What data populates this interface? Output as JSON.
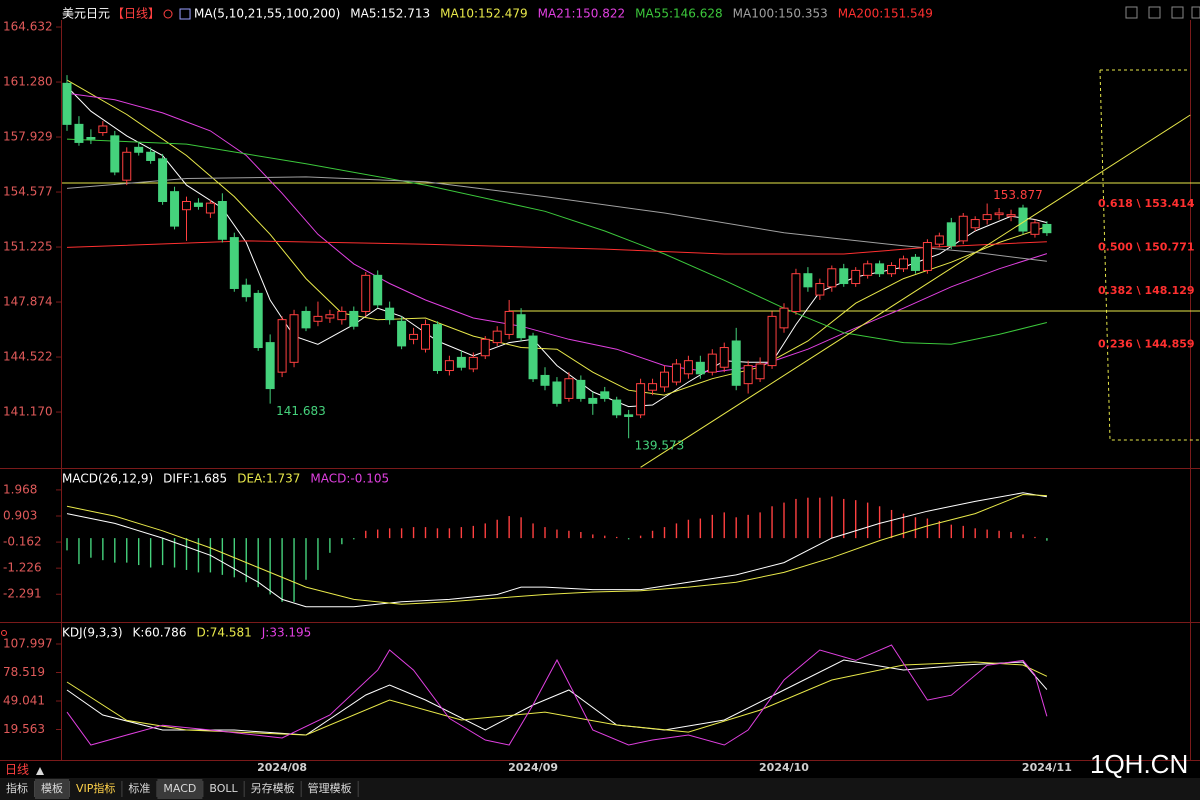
{
  "header": {
    "symbol": "美元日元",
    "period": "【日线】"
  },
  "chart_data": [
    {
      "type": "candlestick",
      "title": "MA(5,10,21,55,100,200)",
      "categories": [
        null,
        null,
        null,
        null,
        null,
        null,
        null,
        null,
        null,
        null,
        null,
        null,
        null,
        null,
        null,
        null,
        null,
        null,
        "2024/08",
        null,
        null,
        null,
        null,
        null,
        null,
        null,
        null,
        null,
        null,
        null,
        null,
        null,
        null,
        null,
        null,
        null,
        null,
        null,
        null,
        "2024/09",
        null,
        null,
        null,
        null,
        null,
        null,
        null,
        null,
        null,
        null,
        null,
        null,
        null,
        null,
        null,
        null,
        null,
        null,
        null,
        null,
        "2024/10",
        null,
        null,
        null,
        null,
        null,
        null,
        null,
        null,
        null,
        null,
        null,
        null,
        null,
        null,
        null,
        null,
        null,
        null,
        null,
        null,
        null,
        "2024/11"
      ],
      "open": [
        161.2,
        158.7,
        157.9,
        158.2,
        158.0,
        155.3,
        157.3,
        157.0,
        156.6,
        154.6,
        153.5,
        153.9,
        153.3,
        154.0,
        151.8,
        148.9,
        148.4,
        145.4,
        143.6,
        144.2,
        147.3,
        146.7,
        146.9,
        146.8,
        147.3,
        147.3,
        149.5,
        147.5,
        146.7,
        145.6,
        145.0,
        146.5,
        143.7,
        144.5,
        143.8,
        144.6,
        145.4,
        145.9,
        147.1,
        145.8,
        143.4,
        143.0,
        142.0,
        143.1,
        142.0,
        142.4,
        141.9,
        141.0,
        141.0,
        142.5,
        142.7,
        143.0,
        143.5,
        144.2,
        143.6,
        143.9,
        145.5,
        142.9,
        143.2,
        144.0,
        146.3,
        147.3,
        149.6,
        148.3,
        148.8,
        149.9,
        149.0,
        149.5,
        150.2,
        149.6,
        149.9,
        150.6,
        149.8,
        151.4,
        152.7,
        151.6,
        152.4,
        152.9,
        153.2,
        153.1,
        153.6,
        152.0,
        152.6
      ],
      "high": [
        161.7,
        159.2,
        158.4,
        158.9,
        158.3,
        157.3,
        157.6,
        157.3,
        156.9,
        154.9,
        154.3,
        154.2,
        154.1,
        154.5,
        152.1,
        149.3,
        148.6,
        145.9,
        147.0,
        147.4,
        147.6,
        147.9,
        147.4,
        147.6,
        147.6,
        149.7,
        149.8,
        147.9,
        147.0,
        146.3,
        146.8,
        146.7,
        144.6,
        144.9,
        144.8,
        145.8,
        146.4,
        148.0,
        147.5,
        146.0,
        143.9,
        143.3,
        143.6,
        143.4,
        142.4,
        142.7,
        142.1,
        141.3,
        143.2,
        143.2,
        144.0,
        144.4,
        144.6,
        144.6,
        145.0,
        145.4,
        146.3,
        144.3,
        144.5,
        147.3,
        147.8,
        149.9,
        150.0,
        149.3,
        150.1,
        150.2,
        150.0,
        150.4,
        150.4,
        150.3,
        150.7,
        150.8,
        151.7,
        152.1,
        153.0,
        153.3,
        153.1,
        153.877,
        153.6,
        153.5,
        153.8,
        152.9,
        152.8
      ],
      "low": [
        158.3,
        157.4,
        157.5,
        158.0,
        155.6,
        155.0,
        156.8,
        156.3,
        153.8,
        152.3,
        151.6,
        153.5,
        153.0,
        151.5,
        148.5,
        147.9,
        144.9,
        141.683,
        143.3,
        143.9,
        146.1,
        146.4,
        146.6,
        146.5,
        146.2,
        147.0,
        147.5,
        146.5,
        145.0,
        145.3,
        144.8,
        143.5,
        143.4,
        143.7,
        143.6,
        144.4,
        145.2,
        145.6,
        145.5,
        143.0,
        142.5,
        141.5,
        141.8,
        141.8,
        141.0,
        141.8,
        140.8,
        139.573,
        140.8,
        142.2,
        142.4,
        142.8,
        143.2,
        143.2,
        143.4,
        143.6,
        142.5,
        142.3,
        143.0,
        143.8,
        146.0,
        147.1,
        148.5,
        148.0,
        148.5,
        148.8,
        148.8,
        149.3,
        149.4,
        149.4,
        149.7,
        149.6,
        149.6,
        151.2,
        151.1,
        151.4,
        152.2,
        152.6,
        152.9,
        152.8,
        152.0,
        151.8,
        151.9
      ],
      "close": [
        158.7,
        157.6,
        157.8,
        158.6,
        155.8,
        157.0,
        157.0,
        156.5,
        154.0,
        152.5,
        154.0,
        153.7,
        153.9,
        151.7,
        148.7,
        148.2,
        145.1,
        142.6,
        146.8,
        147.1,
        146.3,
        147.0,
        147.1,
        147.3,
        146.4,
        149.5,
        147.7,
        146.8,
        145.2,
        145.9,
        146.5,
        143.7,
        144.3,
        143.9,
        144.5,
        145.6,
        146.1,
        147.3,
        145.7,
        143.2,
        142.8,
        141.7,
        143.2,
        142.0,
        141.7,
        142.0,
        141.0,
        140.9,
        142.9,
        142.9,
        143.6,
        144.1,
        144.3,
        143.5,
        144.7,
        145.1,
        142.8,
        144.0,
        144.1,
        147.0,
        147.5,
        149.6,
        148.8,
        149.0,
        149.9,
        149.0,
        149.8,
        150.2,
        149.6,
        150.1,
        150.5,
        149.8,
        151.5,
        151.9,
        151.3,
        153.1,
        152.9,
        153.2,
        153.3,
        153.2,
        152.2,
        152.7,
        152.1
      ],
      "up_color": "#ff4040",
      "down_color": "#45d27c",
      "ylim": [
        137.76,
        165.06
      ],
      "yticks": [
        164.632,
        {
          "value": 161.28,
          "label": "161.280"
        },
        157.929,
        154.577,
        151.225,
        147.874,
        144.522,
        {
          "value": 141.17,
          "label": "141.170"
        }
      ],
      "series": [
        {
          "name": "MA5:152.713",
          "color": "#ffffff",
          "x": [
            0,
            2,
            5,
            8,
            10,
            13,
            15,
            17,
            19,
            21,
            24,
            26,
            28,
            31,
            34,
            37,
            39,
            41,
            44,
            47,
            49,
            52,
            55,
            57,
            59,
            61,
            63,
            66,
            70,
            73,
            76,
            79,
            81,
            82
          ],
          "values": [
            161.0,
            159.5,
            158.0,
            156.8,
            155.0,
            153.6,
            151.5,
            148.0,
            145.8,
            145.3,
            146.5,
            147.5,
            147.0,
            145.5,
            144.6,
            145.4,
            145.6,
            144.0,
            142.4,
            141.5,
            141.6,
            143.0,
            144.3,
            144.2,
            144.2,
            146.5,
            148.5,
            149.4,
            150.0,
            150.8,
            152.2,
            153.1,
            152.9,
            152.713
          ]
        },
        {
          "name": "MA10:152.479",
          "color": "#e8e84a",
          "x": [
            0,
            5,
            10,
            14,
            17,
            20,
            23,
            26,
            30,
            34,
            38,
            41,
            44,
            47,
            50,
            54,
            58,
            62,
            66,
            70,
            74,
            78,
            82
          ],
          "values": [
            161.4,
            159.3,
            156.8,
            154.3,
            152.0,
            149.3,
            147.2,
            146.8,
            146.9,
            145.8,
            145.1,
            145.0,
            143.6,
            142.5,
            142.2,
            143.2,
            143.9,
            145.5,
            147.8,
            149.3,
            150.3,
            151.5,
            152.479
          ]
        },
        {
          "name": "MA21:150.822",
          "color": "#e040e0",
          "x": [
            0,
            4,
            8,
            12,
            15,
            18,
            21,
            24,
            27,
            30,
            34,
            38,
            42,
            46,
            50,
            54,
            58,
            62,
            66,
            70,
            74,
            78,
            82
          ],
          "values": [
            160.6,
            160.2,
            159.4,
            158.3,
            156.8,
            154.5,
            152.0,
            150.2,
            149.0,
            148.0,
            146.9,
            146.4,
            145.6,
            145.0,
            144.0,
            143.6,
            144.0,
            145.0,
            146.3,
            147.5,
            148.8,
            149.9,
            150.822
          ]
        },
        {
          "name": "MA55:146.628",
          "color": "#3cc83c",
          "x": [
            0,
            10,
            20,
            30,
            40,
            45,
            50,
            55,
            60,
            65,
            70,
            74,
            78,
            82
          ],
          "values": [
            157.8,
            157.5,
            156.3,
            155.0,
            153.4,
            152.2,
            150.8,
            149.2,
            147.5,
            146.0,
            145.4,
            145.3,
            145.9,
            146.628
          ]
        },
        {
          "name": "MA100:150.353",
          "color": "#a0a0a0",
          "x": [
            0,
            10,
            20,
            30,
            40,
            50,
            60,
            70,
            76,
            82
          ],
          "values": [
            154.8,
            155.4,
            155.5,
            155.2,
            154.3,
            153.3,
            152.1,
            151.3,
            150.9,
            150.353
          ]
        },
        {
          "name": "MA200:151.549",
          "color": "#ff3030",
          "x": [
            0,
            15,
            30,
            45,
            55,
            65,
            72,
            82
          ],
          "values": [
            151.2,
            151.6,
            151.4,
            151.1,
            150.8,
            150.8,
            151.2,
            151.549
          ]
        }
      ],
      "annotations": [
        {
          "label": "153.877",
          "index": 77,
          "at": "high",
          "color": "#ff4040"
        },
        {
          "label": "141.683",
          "index": 17,
          "at": "low",
          "color": "#45d27c"
        },
        {
          "label": "139.573",
          "index": 47,
          "at": "low",
          "color": "#45d27c"
        }
      ],
      "levels": [
        {
          "label": "0.618 \\ 153.414",
          "value": 153.414
        },
        {
          "label": "0.500 \\ 150.771",
          "value": 150.771
        },
        {
          "label": "0.382 \\ 148.129",
          "value": 148.129
        },
        {
          "label": "0.236 \\ 144.859",
          "value": 144.859
        }
      ],
      "level_color": "#ff3030",
      "hlines": [
        {
          "value": 155.13,
          "color": "#e8e84a"
        },
        {
          "value": 147.33,
          "from": 37,
          "color": "#e8e84a"
        }
      ],
      "trendline": {
        "x": [
          48,
          94
        ],
        "y": [
          137.8,
          159.27
        ],
        "color": "#e8e84a"
      }
    },
    {
      "type": "macd",
      "title": "MACD(26,12,9)",
      "ylim": [
        -3.424,
        2.454
      ],
      "yticks": [
        1.968,
        0.903,
        -0.162,
        -1.226,
        -2.291
      ],
      "histogram": {
        "name": "MACD:-0.105",
        "color": "#e040e0",
        "up_color": "#ff4040",
        "down_color": "#45d27c",
        "values": [
          -0.5,
          -1.06,
          -0.8,
          -0.9,
          -1.0,
          -1.0,
          -1.1,
          -1.2,
          -1.1,
          -1.2,
          -1.3,
          -1.4,
          -1.4,
          -1.5,
          -1.6,
          -1.8,
          -2.0,
          -2.3,
          -2.6,
          -2.6,
          -1.7,
          -1.3,
          -0.6,
          -0.25,
          -0.05,
          0.3,
          0.35,
          0.4,
          0.4,
          0.45,
          0.45,
          0.4,
          0.4,
          0.45,
          0.5,
          0.6,
          0.75,
          0.9,
          0.85,
          0.6,
          0.45,
          0.35,
          0.3,
          0.25,
          0.15,
          0.1,
          0.05,
          -0.05,
          0.1,
          0.3,
          0.45,
          0.6,
          0.75,
          0.8,
          0.95,
          1.05,
          0.85,
          0.95,
          1.05,
          1.3,
          1.45,
          1.6,
          1.65,
          1.65,
          1.7,
          1.6,
          1.55,
          1.45,
          1.3,
          1.15,
          1.0,
          0.85,
          0.8,
          0.7,
          0.55,
          0.5,
          0.4,
          0.35,
          0.3,
          0.25,
          0.15,
          0.05,
          -0.105
        ]
      },
      "series": [
        {
          "name": "DIFF:1.685",
          "color": "#ffffff",
          "x": [
            0,
            4,
            8,
            12,
            16,
            18,
            20,
            24,
            28,
            32,
            36,
            38,
            40,
            44,
            48,
            52,
            56,
            60,
            64,
            68,
            72,
            76,
            80,
            82
          ],
          "values": [
            1.0,
            0.6,
            0.0,
            -0.7,
            -1.8,
            -2.5,
            -2.8,
            -2.8,
            -2.6,
            -2.5,
            -2.3,
            -2.0,
            -2.0,
            -2.1,
            -2.1,
            -1.8,
            -1.5,
            -1.0,
            0.0,
            0.6,
            1.1,
            1.5,
            1.85,
            1.685
          ]
        },
        {
          "name": "DEA:1.737",
          "color": "#e8e84a",
          "x": [
            0,
            4,
            8,
            12,
            16,
            20,
            24,
            28,
            32,
            36,
            40,
            44,
            48,
            52,
            56,
            60,
            64,
            68,
            72,
            76,
            80,
            82
          ],
          "values": [
            1.3,
            0.9,
            0.3,
            -0.4,
            -1.2,
            -2.0,
            -2.5,
            -2.7,
            -2.6,
            -2.45,
            -2.3,
            -2.2,
            -2.15,
            -2.0,
            -1.8,
            -1.4,
            -0.8,
            -0.1,
            0.5,
            1.0,
            1.78,
            1.737
          ]
        }
      ]
    },
    {
      "type": "line",
      "title": "KDJ(9,3,3)",
      "ylim": [
        -12.0,
        124.55
      ],
      "yticks": [
        107.997,
        78.519,
        49.041,
        19.563
      ],
      "series": [
        {
          "name": "K:60.786",
          "color": "#ffffff",
          "x": [
            0,
            3,
            8,
            14,
            20,
            25,
            27,
            30,
            35,
            39,
            42,
            46,
            50,
            55,
            60,
            65,
            70,
            75,
            80,
            82
          ],
          "values": [
            60.4,
            34.6,
            19.0,
            19.0,
            13.9,
            55.2,
            65.6,
            50.1,
            19.0,
            44.9,
            60.4,
            24.2,
            19.0,
            29.4,
            60.4,
            91.4,
            81.1,
            86.3,
            89.4,
            60.786
          ]
        },
        {
          "name": "D:74.581",
          "color": "#e8e84a",
          "x": [
            0,
            5,
            10,
            20,
            27,
            33,
            40,
            46,
            52,
            58,
            64,
            70,
            76,
            80,
            82
          ],
          "values": [
            68.7,
            29.0,
            19.0,
            13.9,
            50.1,
            29.4,
            37.6,
            24.2,
            16.9,
            39.6,
            70.8,
            86.3,
            89.4,
            86.3,
            74.581
          ]
        },
        {
          "name": "J:33.195",
          "color": "#e040e0",
          "x": [
            0,
            2,
            5,
            8,
            12,
            18,
            22,
            26,
            27,
            29,
            32,
            35,
            37,
            39,
            41,
            44,
            47,
            49,
            52,
            55,
            57,
            60,
            63,
            66,
            69,
            72,
            74,
            77,
            80,
            81,
            82
          ],
          "values": [
            37.6,
            3.5,
            13.9,
            24.0,
            19.0,
            10.8,
            34.6,
            81.0,
            101.8,
            81.0,
            31.0,
            8.7,
            3.5,
            45.0,
            91.4,
            19.0,
            3.5,
            8.7,
            13.9,
            3.5,
            19.0,
            70.8,
            101.8,
            91.0,
            107.0,
            50.0,
            55.0,
            86.0,
            91.0,
            76.0,
            33.195
          ]
        }
      ]
    }
  ],
  "toolbar": {
    "period": "日线",
    "tabs": [
      "指标",
      "模板",
      "VIP指标",
      "标准",
      "MACD",
      "BOLL",
      "另存模板",
      "管理模板"
    ],
    "active_tabs": [
      1,
      4
    ]
  },
  "watermark": "1QH.CN"
}
